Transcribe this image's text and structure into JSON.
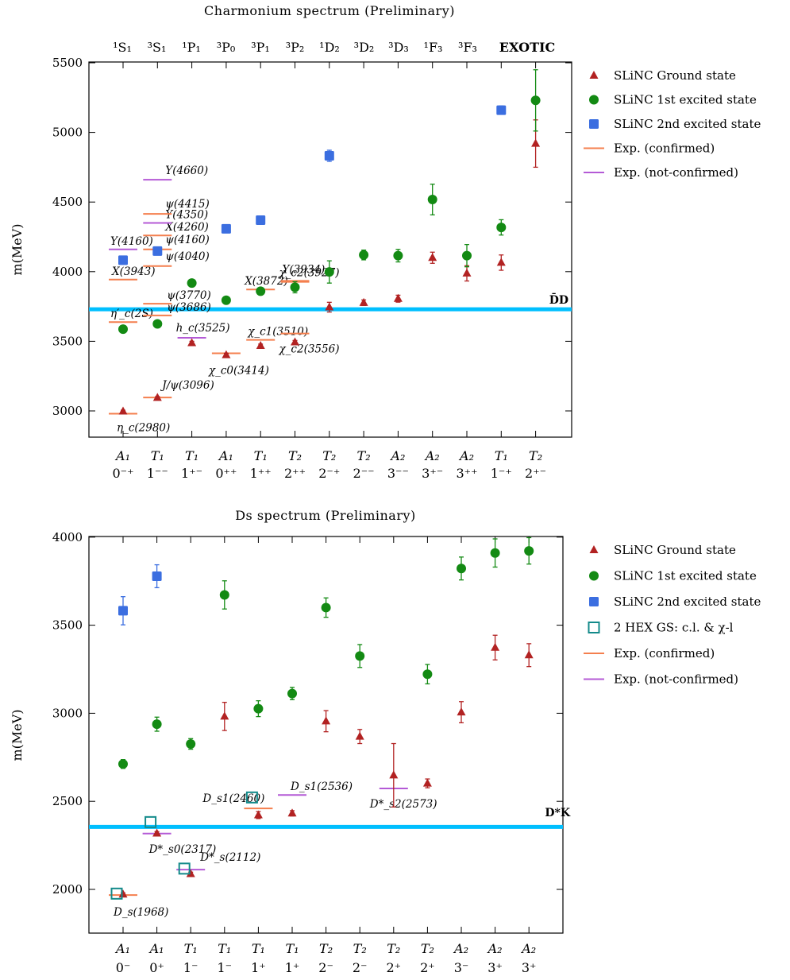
{
  "colors": {
    "ground": "#b22222",
    "excited1": "#138a13",
    "excited2": "#3b6ee0",
    "hex": "#138a8a",
    "exp_confirmed": "#f47f4e",
    "exp_not_confirmed": "#b45ad6",
    "threshold": "#00bfff"
  },
  "icons": {
    "ground": "triangle-marker",
    "excited1": "circle-marker",
    "excited2": "square-marker",
    "hex": "hollow-square-marker",
    "exp_confirmed": "orange-line",
    "exp_not_confirmed": "purple-line"
  },
  "chart_data": [
    {
      "type": "scatter",
      "title": "Charmonium spectrum (Preliminary)",
      "ylabel": "m(MeV)",
      "ylim": [
        2800,
        5500
      ],
      "yticks": [
        3000,
        3500,
        4000,
        4500,
        5000,
        5500
      ],
      "grid": false,
      "legend_position": "outside-right",
      "top_labels": [
        "¹S₁",
        "³S₁",
        "¹P₁",
        "³P₀",
        "³P₁",
        "³P₂",
        "¹D₂",
        "³D₂",
        "³D₃",
        "¹F₃",
        "³F₃",
        "EXOTIC"
      ],
      "categories": [
        {
          "irrep": "A₁",
          "jpc": "0⁻⁺"
        },
        {
          "irrep": "T₁",
          "jpc": "1⁻⁻"
        },
        {
          "irrep": "T₁",
          "jpc": "1⁺⁻"
        },
        {
          "irrep": "A₁",
          "jpc": "0⁺⁺"
        },
        {
          "irrep": "T₁",
          "jpc": "1⁺⁺"
        },
        {
          "irrep": "T₂",
          "jpc": "2⁺⁺"
        },
        {
          "irrep": "T₂",
          "jpc": "2⁻⁺"
        },
        {
          "irrep": "T₂",
          "jpc": "2⁻⁻"
        },
        {
          "irrep": "A₂",
          "jpc": "3⁻⁻"
        },
        {
          "irrep": "A₂",
          "jpc": "3⁺⁻"
        },
        {
          "irrep": "A₂",
          "jpc": "3⁺⁺"
        },
        {
          "irrep": "T₁",
          "jpc": "1⁻⁺"
        },
        {
          "irrep": "T₂",
          "jpc": "2⁺⁻"
        }
      ],
      "threshold": {
        "label": "D̄D",
        "value": 3730
      },
      "legend": [
        {
          "key": "ground",
          "label": "SLiNC Ground state"
        },
        {
          "key": "excited1",
          "label": "SLiNC 1st excited state"
        },
        {
          "key": "excited2",
          "label": "SLiNC 2nd excited state"
        },
        {
          "key": "exp_confirmed",
          "label": "Exp. (confirmed)"
        },
        {
          "key": "exp_not_confirmed",
          "label": "Exp. (not-confirmed)"
        }
      ],
      "series": [
        {
          "key": "ground",
          "points": [
            {
              "x": 0,
              "y": 2997,
              "err": 8
            },
            {
              "x": 1,
              "y": 3095,
              "err": 8
            },
            {
              "x": 2,
              "y": 3488,
              "err": 12
            },
            {
              "x": 3,
              "y": 3402,
              "err": 12
            },
            {
              "x": 4,
              "y": 3468,
              "err": 12
            },
            {
              "x": 5,
              "y": 3494,
              "err": 12
            },
            {
              "x": 6,
              "y": 3745,
              "err": 35
            },
            {
              "x": 7,
              "y": 3777,
              "err": 20
            },
            {
              "x": 8,
              "y": 3806,
              "err": 25
            },
            {
              "x": 9,
              "y": 4100,
              "err": 40
            },
            {
              "x": 10,
              "y": 3988,
              "err": 55
            },
            {
              "x": 11,
              "y": 4065,
              "err": 55
            },
            {
              "x": 12,
              "y": 4920,
              "err": 170
            }
          ]
        },
        {
          "key": "excited1",
          "points": [
            {
              "x": 0,
              "y": 3587,
              "err": 12
            },
            {
              "x": 1,
              "y": 3625,
              "err": 12
            },
            {
              "x": 2,
              "y": 3918,
              "err": 25
            },
            {
              "x": 3,
              "y": 3795,
              "err": 15
            },
            {
              "x": 4,
              "y": 3860,
              "err": 15
            },
            {
              "x": 5,
              "y": 3888,
              "err": 40
            },
            {
              "x": 6,
              "y": 3998,
              "err": 80
            },
            {
              "x": 7,
              "y": 4120,
              "err": 35
            },
            {
              "x": 8,
              "y": 4115,
              "err": 45
            },
            {
              "x": 9,
              "y": 4518,
              "err": 110
            },
            {
              "x": 10,
              "y": 4115,
              "err": 80
            },
            {
              "x": 11,
              "y": 4318,
              "err": 55
            },
            {
              "x": 12,
              "y": 5230,
              "err": 220
            }
          ]
        },
        {
          "key": "excited2",
          "points": [
            {
              "x": 0,
              "y": 4082,
              "err": 25
            },
            {
              "x": 1,
              "y": 4148,
              "err": 25
            },
            {
              "x": 3,
              "y": 4308,
              "err": 25
            },
            {
              "x": 4,
              "y": 4370,
              "err": 25
            },
            {
              "x": 6,
              "y": 4832,
              "err": 40
            },
            {
              "x": 11,
              "y": 5160,
              "err": 30
            }
          ]
        }
      ],
      "experiments": [
        {
          "x": 0,
          "y": 2980,
          "label": "η_c(2980)",
          "confirmed": true
        },
        {
          "x": 0,
          "y": 3638,
          "label": "η′_c(2S)",
          "confirmed": true
        },
        {
          "x": 0,
          "y": 3943,
          "label": "X(3943)",
          "confirmed": true
        },
        {
          "x": 0,
          "y": 4160,
          "label": "Y(4160)",
          "confirmed": false
        },
        {
          "x": 1,
          "y": 3096,
          "label": "J/ψ(3096)",
          "confirmed": true
        },
        {
          "x": 1,
          "y": 3686,
          "label": "ψ(3686)",
          "confirmed": true
        },
        {
          "x": 1,
          "y": 3770,
          "label": "ψ(3770)",
          "confirmed": true
        },
        {
          "x": 1,
          "y": 4040,
          "label": "ψ(4040)",
          "confirmed": true
        },
        {
          "x": 1,
          "y": 4160,
          "label": "ψ(4160)",
          "confirmed": true
        },
        {
          "x": 1,
          "y": 4260,
          "label": "X(4260)",
          "confirmed": true
        },
        {
          "x": 1,
          "y": 4350,
          "label": "Y(4350)",
          "confirmed": false
        },
        {
          "x": 1,
          "y": 4415,
          "label": "ψ(4415)",
          "confirmed": true
        },
        {
          "x": 1,
          "y": 4660,
          "label": "Y(4660)",
          "confirmed": false
        },
        {
          "x": 2,
          "y": 3525,
          "label": "h_c(3525)",
          "confirmed": false
        },
        {
          "x": 3,
          "y": 3414,
          "label": "χ_c0(3414)",
          "confirmed": true
        },
        {
          "x": 4,
          "y": 3510,
          "label": "χ_c1(3510)",
          "confirmed": true
        },
        {
          "x": 4,
          "y": 3872,
          "label": "X(3872)",
          "confirmed": true
        },
        {
          "x": 5,
          "y": 3556,
          "label": "χ_c2(3556)",
          "confirmed": true
        },
        {
          "x": 5,
          "y": 3927,
          "label": "χ_c2(3927)",
          "confirmed": true
        },
        {
          "x": 5,
          "y": 3934,
          "label": "Y(3934)",
          "confirmed": true
        }
      ]
    },
    {
      "type": "scatter",
      "title": "Ds spectrum (Preliminary)",
      "ylabel": "m(MeV)",
      "ylim": [
        1750,
        4000
      ],
      "yticks": [
        2000,
        2500,
        3000,
        3500,
        4000
      ],
      "grid": false,
      "legend_position": "outside-right",
      "categories": [
        {
          "irrep": "A₁",
          "jpc": "0⁻"
        },
        {
          "irrep": "A₁",
          "jpc": "0⁺"
        },
        {
          "irrep": "T₁",
          "jpc": "1⁻"
        },
        {
          "irrep": "T₁",
          "jpc": "1⁻"
        },
        {
          "irrep": "T₁",
          "jpc": "1⁺"
        },
        {
          "irrep": "T₁",
          "jpc": "1⁺"
        },
        {
          "irrep": "T₂",
          "jpc": "2⁻"
        },
        {
          "irrep": "T₂",
          "jpc": "2⁻"
        },
        {
          "irrep": "T₂",
          "jpc": "2⁺"
        },
        {
          "irrep": "T₂",
          "jpc": "2⁺"
        },
        {
          "irrep": "A₂",
          "jpc": "3⁻"
        },
        {
          "irrep": "A₂",
          "jpc": "3⁺"
        },
        {
          "irrep": "A₂",
          "jpc": "3⁺"
        }
      ],
      "threshold": {
        "label": "D*K",
        "value": 2355
      },
      "legend": [
        {
          "key": "ground",
          "label": "SLiNC Ground state"
        },
        {
          "key": "excited1",
          "label": "SLiNC 1st excited state"
        },
        {
          "key": "excited2",
          "label": "SLiNC 2nd excited state"
        },
        {
          "key": "hex",
          "label": "2 HEX GS: c.l. & χ-l"
        },
        {
          "key": "exp_confirmed",
          "label": "Exp. (confirmed)"
        },
        {
          "key": "exp_not_confirmed",
          "label": "Exp. (not-confirmed)"
        }
      ],
      "series": [
        {
          "key": "ground",
          "points": [
            {
              "x": 0,
              "y": 1972,
              "err": 8
            },
            {
              "x": 1,
              "y": 2318,
              "err": 10
            },
            {
              "x": 2,
              "y": 2088,
              "err": 10
            },
            {
              "x": 3,
              "y": 2982,
              "err": 80
            },
            {
              "x": 4,
              "y": 2422,
              "err": 20
            },
            {
              "x": 5,
              "y": 2432,
              "err": 15
            },
            {
              "x": 6,
              "y": 2955,
              "err": 60
            },
            {
              "x": 7,
              "y": 2868,
              "err": 40
            },
            {
              "x": 8,
              "y": 2648,
              "err": 180
            },
            {
              "x": 9,
              "y": 2602,
              "err": 25
            },
            {
              "x": 10,
              "y": 3006,
              "err": 60
            },
            {
              "x": 11,
              "y": 3373,
              "err": 70
            },
            {
              "x": 12,
              "y": 3330,
              "err": 65
            }
          ]
        },
        {
          "key": "excited1",
          "points": [
            {
              "x": 0,
              "y": 2712,
              "err": 25
            },
            {
              "x": 1,
              "y": 2938,
              "err": 40
            },
            {
              "x": 2,
              "y": 2826,
              "err": 30
            },
            {
              "x": 3,
              "y": 3672,
              "err": 80
            },
            {
              "x": 4,
              "y": 3026,
              "err": 45
            },
            {
              "x": 5,
              "y": 3112,
              "err": 35
            },
            {
              "x": 6,
              "y": 3600,
              "err": 55
            },
            {
              "x": 7,
              "y": 3325,
              "err": 65
            },
            {
              "x": 9,
              "y": 3222,
              "err": 55
            },
            {
              "x": 10,
              "y": 3822,
              "err": 65
            },
            {
              "x": 11,
              "y": 3910,
              "err": 80
            },
            {
              "x": 12,
              "y": 3922,
              "err": 75
            }
          ]
        },
        {
          "key": "excited2",
          "points": [
            {
              "x": 0,
              "y": 3582,
              "err": 80
            },
            {
              "x": 1,
              "y": 3778,
              "err": 65
            }
          ]
        },
        {
          "key": "hex",
          "points": [
            {
              "x": 0,
              "y": 1976
            },
            {
              "x": 1,
              "y": 2382
            },
            {
              "x": 2,
              "y": 2118
            },
            {
              "x": 4,
              "y": 2522
            }
          ]
        }
      ],
      "experiments": [
        {
          "x": 0,
          "y": 1968,
          "label": "D_s(1968)",
          "confirmed": true
        },
        {
          "x": 1,
          "y": 2317,
          "label": "D*_s0(2317)",
          "confirmed": false
        },
        {
          "x": 2,
          "y": 2112,
          "label": "D*_s(2112)",
          "confirmed": false
        },
        {
          "x": 4,
          "y": 2460,
          "label": "D_s1(2460)",
          "confirmed": true
        },
        {
          "x": 5,
          "y": 2536,
          "label": "D_s1(2536)",
          "confirmed": false
        },
        {
          "x": 8,
          "y": 2573,
          "label": "D*_s2(2573)",
          "confirmed": false
        }
      ]
    }
  ]
}
